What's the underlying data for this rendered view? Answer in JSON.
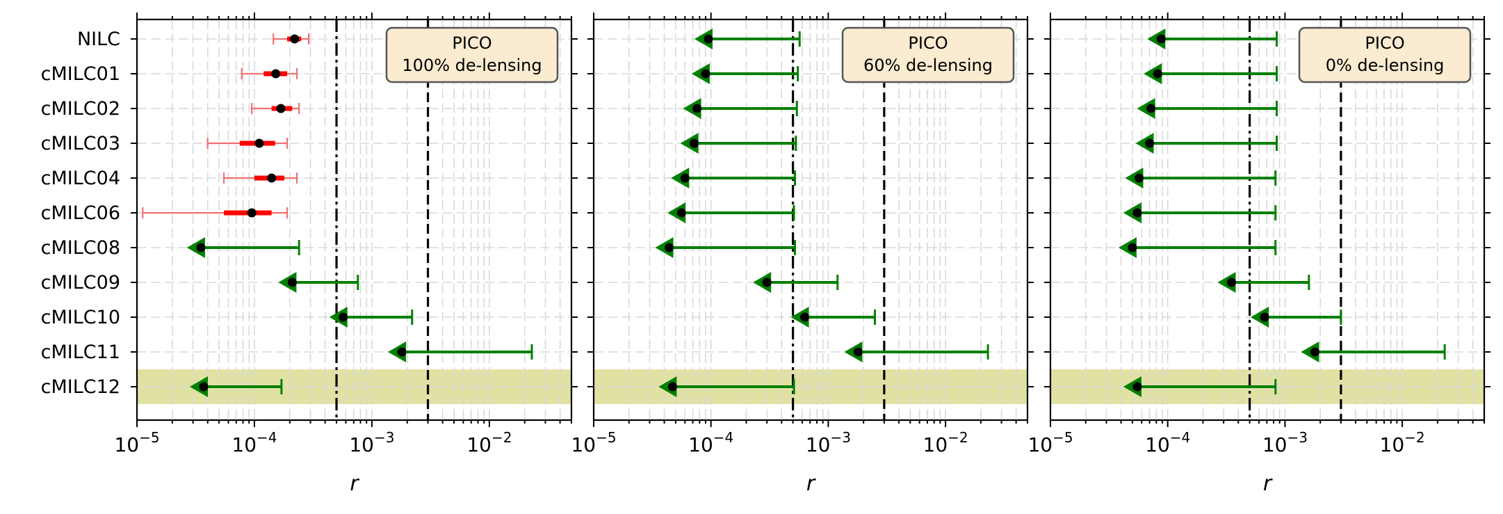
{
  "figure": {
    "method_labels": [
      "NILC",
      "cMILC01",
      "cMILC02",
      "cMILC03",
      "cMILC04",
      "cMILC06",
      "cMILC08",
      "cMILC09",
      "cMILC10",
      "cMILC11",
      "cMILC12"
    ],
    "highlight_row": "cMILC12",
    "colors": {
      "detection_point": "#000000",
      "detection_1sigma": "#ff0000",
      "detection_2sigma": "#f07070",
      "upper_limit": "#008000",
      "highlight_band": "#dede9a",
      "grid": "#d9d9d9",
      "box_fill": "#fbebd0",
      "box_edge": "#555555"
    },
    "x_ticks": [
      {
        "value": 1e-05,
        "base": "10",
        "exp": "−5"
      },
      {
        "value": 0.0001,
        "base": "10",
        "exp": "−4"
      },
      {
        "value": 0.001,
        "base": "10",
        "exp": "−3"
      },
      {
        "value": 0.01,
        "base": "10",
        "exp": "−2"
      }
    ]
  },
  "chart_data": [
    {
      "type": "scatter",
      "xlabel": "r",
      "xscale": "log",
      "xlim": [
        1e-05,
        0.05
      ],
      "grid": true,
      "legend": "top-right",
      "box_lines": [
        "PICO",
        "100% de-lensing"
      ],
      "reference_lines": [
        {
          "x": 0.0005,
          "style": "dashdot"
        },
        {
          "x": 0.003,
          "style": "dashed"
        }
      ],
      "series": [
        {
          "method": "NILC",
          "kind": "detection",
          "r": 0.00022,
          "sigma1": [
            0.00019,
            0.00025
          ],
          "sigma2": [
            0.000145,
            0.00029
          ]
        },
        {
          "method": "cMILC01",
          "kind": "detection",
          "r": 0.000152,
          "sigma1": [
            0.00012,
            0.00019
          ],
          "sigma2": [
            7.8e-05,
            0.00023
          ]
        },
        {
          "method": "cMILC02",
          "kind": "detection",
          "r": 0.000168,
          "sigma1": [
            0.00014,
            0.00021
          ],
          "sigma2": [
            9.5e-05,
            0.00024
          ]
        },
        {
          "method": "cMILC03",
          "kind": "detection",
          "r": 0.00011,
          "sigma1": [
            7.5e-05,
            0.00015
          ],
          "sigma2": [
            4e-05,
            0.00019
          ]
        },
        {
          "method": "cMILC04",
          "kind": "detection",
          "r": 0.00014,
          "sigma1": [
            0.0001,
            0.00018
          ],
          "sigma2": [
            5.5e-05,
            0.00023
          ]
        },
        {
          "method": "cMILC06",
          "kind": "detection",
          "r": 9.5e-05,
          "sigma1": [
            5.5e-05,
            0.00014
          ],
          "sigma2": [
            1.12e-05,
            0.00019
          ]
        },
        {
          "method": "cMILC08",
          "kind": "upper_limit",
          "r": 3.5e-05,
          "limit": 0.00024
        },
        {
          "method": "cMILC09",
          "kind": "upper_limit",
          "r": 0.00021,
          "limit": 0.00076
        },
        {
          "method": "cMILC10",
          "kind": "upper_limit",
          "r": 0.00057,
          "limit": 0.0022
        },
        {
          "method": "cMILC11",
          "kind": "upper_limit",
          "r": 0.0018,
          "limit": 0.023
        },
        {
          "method": "cMILC12",
          "kind": "upper_limit",
          "r": 3.7e-05,
          "limit": 0.00017
        }
      ]
    },
    {
      "type": "scatter",
      "xlabel": "r",
      "xscale": "log",
      "xlim": [
        1e-05,
        0.05
      ],
      "grid": true,
      "legend": "top-right",
      "box_lines": [
        "PICO",
        "60% de-lensing"
      ],
      "reference_lines": [
        {
          "x": 0.0005,
          "style": "dashdot"
        },
        {
          "x": 0.003,
          "style": "dashed"
        }
      ],
      "series": [
        {
          "method": "NILC",
          "kind": "upper_limit",
          "r": 9.5e-05,
          "limit": 0.00057
        },
        {
          "method": "cMILC01",
          "kind": "upper_limit",
          "r": 9e-05,
          "limit": 0.00055
        },
        {
          "method": "cMILC02",
          "kind": "upper_limit",
          "r": 7.6e-05,
          "limit": 0.00054
        },
        {
          "method": "cMILC03",
          "kind": "upper_limit",
          "r": 7.2e-05,
          "limit": 0.00053
        },
        {
          "method": "cMILC04",
          "kind": "upper_limit",
          "r": 6e-05,
          "limit": 0.00052
        },
        {
          "method": "cMILC06",
          "kind": "upper_limit",
          "r": 5.6e-05,
          "limit": 0.00051
        },
        {
          "method": "cMILC08",
          "kind": "upper_limit",
          "r": 4.4e-05,
          "limit": 0.00052
        },
        {
          "method": "cMILC09",
          "kind": "upper_limit",
          "r": 0.0003,
          "limit": 0.0012
        },
        {
          "method": "cMILC10",
          "kind": "upper_limit",
          "r": 0.00063,
          "limit": 0.0025
        },
        {
          "method": "cMILC11",
          "kind": "upper_limit",
          "r": 0.0018,
          "limit": 0.023
        },
        {
          "method": "cMILC12",
          "kind": "upper_limit",
          "r": 4.7e-05,
          "limit": 0.00051
        }
      ]
    },
    {
      "type": "scatter",
      "xlabel": "r",
      "xscale": "log",
      "xlim": [
        1e-05,
        0.05
      ],
      "grid": true,
      "legend": "top-right",
      "box_lines": [
        "PICO",
        "0% de-lensing"
      ],
      "reference_lines": [
        {
          "x": 0.0005,
          "style": "dashdot"
        },
        {
          "x": 0.003,
          "style": "dashed"
        }
      ],
      "series": [
        {
          "method": "NILC",
          "kind": "upper_limit",
          "r": 8.8e-05,
          "limit": 0.00085
        },
        {
          "method": "cMILC01",
          "kind": "upper_limit",
          "r": 8.2e-05,
          "limit": 0.00085
        },
        {
          "method": "cMILC02",
          "kind": "upper_limit",
          "r": 7.2e-05,
          "limit": 0.00085
        },
        {
          "method": "cMILC03",
          "kind": "upper_limit",
          "r": 7e-05,
          "limit": 0.00085
        },
        {
          "method": "cMILC04",
          "kind": "upper_limit",
          "r": 5.7e-05,
          "limit": 0.00083
        },
        {
          "method": "cMILC06",
          "kind": "upper_limit",
          "r": 5.5e-05,
          "limit": 0.00083
        },
        {
          "method": "cMILC08",
          "kind": "upper_limit",
          "r": 5e-05,
          "limit": 0.00083
        },
        {
          "method": "cMILC09",
          "kind": "upper_limit",
          "r": 0.00035,
          "limit": 0.0016
        },
        {
          "method": "cMILC10",
          "kind": "upper_limit",
          "r": 0.00067,
          "limit": 0.003
        },
        {
          "method": "cMILC11",
          "kind": "upper_limit",
          "r": 0.0018,
          "limit": 0.023
        },
        {
          "method": "cMILC12",
          "kind": "upper_limit",
          "r": 5.5e-05,
          "limit": 0.00083
        }
      ]
    }
  ]
}
